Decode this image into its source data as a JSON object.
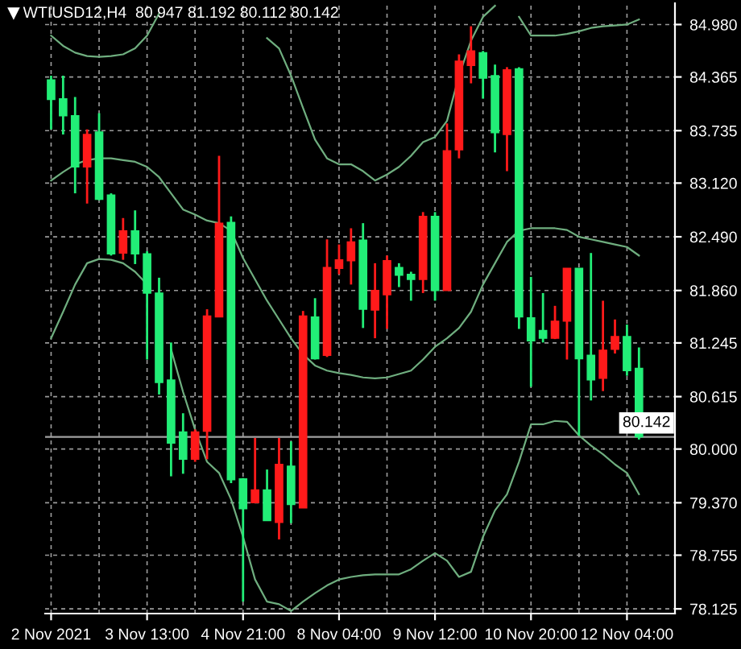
{
  "chart_data": {
    "type": "candlestick",
    "title": "WTIUSD12,H4  80.947 81.192 80.112 80.142",
    "categories": [
      "2 Nov 2021",
      null,
      null,
      null,
      null,
      null,
      null,
      null,
      "3 Nov 13:00",
      null,
      null,
      null,
      null,
      null,
      null,
      null,
      "4 Nov 21:00",
      null,
      null,
      null,
      null,
      null,
      null,
      null,
      "8 Nov 04:00",
      null,
      null,
      null,
      null,
      null,
      null,
      null,
      "9 Nov 12:00",
      null,
      null,
      null,
      null,
      null,
      null,
      null,
      "10 Nov 20:00",
      null,
      null,
      null,
      null,
      null,
      null,
      null,
      "12 Nov 04:00",
      null
    ],
    "ohlc": [
      [
        84.33,
        84.38,
        83.75,
        84.1
      ],
      [
        84.11,
        84.38,
        83.69,
        83.91
      ],
      [
        83.91,
        84.13,
        83.0,
        83.31
      ],
      [
        83.31,
        83.75,
        82.88,
        83.69
      ],
      [
        83.72,
        83.94,
        82.92,
        82.93
      ],
      [
        82.98,
        83.0,
        82.27,
        82.29
      ],
      [
        82.3,
        82.71,
        82.22,
        82.56
      ],
      [
        82.56,
        82.8,
        82.17,
        82.29
      ],
      [
        82.29,
        82.32,
        81.05,
        81.83
      ],
      [
        81.83,
        82.01,
        80.64,
        80.78
      ],
      [
        80.81,
        81.25,
        79.68,
        80.07
      ],
      [
        80.2,
        80.42,
        79.71,
        79.88
      ],
      [
        79.88,
        80.23,
        79.85,
        80.2
      ],
      [
        80.21,
        81.64,
        79.88,
        81.56
      ],
      [
        81.55,
        83.44,
        81.55,
        82.65
      ],
      [
        82.66,
        82.73,
        79.6,
        79.64
      ],
      [
        79.65,
        79.66,
        78.21,
        79.3
      ],
      [
        79.37,
        80.13,
        79.37,
        79.52
      ],
      [
        79.52,
        79.76,
        79.16,
        79.16
      ],
      [
        79.14,
        80.13,
        78.94,
        79.82
      ],
      [
        79.8,
        80.09,
        79.13,
        79.35
      ],
      [
        79.31,
        81.62,
        79.31,
        81.56
      ],
      [
        81.55,
        81.77,
        81.05,
        81.06
      ],
      [
        81.1,
        82.46,
        81.08,
        82.13
      ],
      [
        82.12,
        82.4,
        82.05,
        82.22
      ],
      [
        82.21,
        82.59,
        81.93,
        82.43
      ],
      [
        82.45,
        82.65,
        81.42,
        81.64
      ],
      [
        81.63,
        82.18,
        81.3,
        81.86
      ],
      [
        81.81,
        82.27,
        81.41,
        82.21
      ],
      [
        82.13,
        82.18,
        81.9,
        82.04
      ],
      [
        82.05,
        82.08,
        81.74,
        81.99
      ],
      [
        81.99,
        82.78,
        81.83,
        82.73
      ],
      [
        82.73,
        82.78,
        81.74,
        81.86
      ],
      [
        81.86,
        83.82,
        81.86,
        83.5
      ],
      [
        83.51,
        84.63,
        83.41,
        84.55
      ],
      [
        84.5,
        84.96,
        84.29,
        84.67
      ],
      [
        84.65,
        84.67,
        84.11,
        84.35
      ],
      [
        84.38,
        84.51,
        83.48,
        83.71
      ],
      [
        83.69,
        84.48,
        83.26,
        84.45
      ],
      [
        84.46,
        84.48,
        81.41,
        81.55
      ],
      [
        81.54,
        82.02,
        80.73,
        81.27
      ],
      [
        81.39,
        81.83,
        81.25,
        81.3
      ],
      [
        81.3,
        81.68,
        81.29,
        81.5
      ],
      [
        81.5,
        82.12,
        81.05,
        82.12
      ],
      [
        82.12,
        82.12,
        80.16,
        81.06
      ],
      [
        81.1,
        82.3,
        80.57,
        80.81
      ],
      [
        80.83,
        81.74,
        80.68,
        81.16
      ],
      [
        81.17,
        81.52,
        81.12,
        81.32
      ],
      [
        81.32,
        81.46,
        80.86,
        80.92
      ],
      [
        80.947,
        81.192,
        80.112,
        80.142
      ]
    ],
    "colors": [
      "#22ee77",
      "#22ee77",
      "#22ee77",
      "#ff1a1a",
      "#22ee77",
      "#22ee77",
      "#ff1a1a",
      "#22ee77",
      "#22ee77",
      "#22ee77",
      "#22ee77",
      "#22ee77",
      "#ff1a1a",
      "#ff1a1a",
      "#ff1a1a",
      "#22ee77",
      "#22ee77",
      "#ff1a1a",
      "#22ee77",
      "#ff1a1a",
      "#22ee77",
      "#ff1a1a",
      "#22ee77",
      "#ff1a1a",
      "#ff1a1a",
      "#ff1a1a",
      "#22ee77",
      "#ff1a1a",
      "#ff1a1a",
      "#22ee77",
      "#22ee77",
      "#ff1a1a",
      "#22ee77",
      "#ff1a1a",
      "#ff1a1a",
      "#ff1a1a",
      "#22ee77",
      "#22ee77",
      "#ff1a1a",
      "#22ee77",
      "#22ee77",
      "#22ee77",
      "#ff1a1a",
      "#ff1a1a",
      "#22ee77",
      "#22ee77",
      "#ff1a1a",
      "#ff1a1a",
      "#22ee77",
      "#22ee77"
    ],
    "series": [
      {
        "type": "line",
        "color": "#6fae7f",
        "values": [
          84.85,
          84.73,
          84.65,
          84.61,
          84.6,
          84.61,
          84.63,
          84.7,
          84.85,
          85.11,
          null,
          null,
          null,
          null,
          null,
          null,
          null,
          null,
          84.82,
          84.7,
          84.38,
          84.0,
          83.63,
          83.41,
          83.34,
          83.34,
          83.26,
          83.15,
          83.22,
          83.31,
          83.44,
          83.6,
          83.66,
          83.85,
          84.38,
          84.79,
          85.07,
          85.2,
          null,
          85.07,
          84.85,
          84.85,
          84.85,
          84.87,
          84.9,
          84.94,
          84.96,
          84.97,
          84.98,
          85.04
        ]
      },
      {
        "type": "line",
        "color": "#6fae7f",
        "values": [
          83.15,
          83.25,
          83.34,
          83.39,
          83.41,
          83.41,
          83.39,
          83.37,
          83.31,
          83.19,
          83.0,
          82.81,
          82.75,
          82.68,
          82.65,
          82.56,
          82.24,
          81.99,
          81.74,
          81.52,
          81.3,
          81.11,
          80.98,
          80.92,
          80.89,
          80.87,
          80.84,
          80.83,
          80.84,
          80.88,
          80.92,
          81.05,
          81.2,
          81.3,
          81.42,
          81.61,
          81.93,
          82.18,
          82.43,
          82.56,
          82.59,
          82.59,
          82.59,
          82.57,
          82.49,
          82.46,
          82.43,
          82.4,
          82.37,
          82.27
        ]
      },
      {
        "type": "line",
        "color": "#6fae7f",
        "values": [
          81.3,
          81.61,
          81.93,
          82.18,
          82.23,
          82.22,
          82.18,
          82.08,
          81.93,
          null,
          81.17,
          80.67,
          80.23,
          79.85,
          79.72,
          79.41,
          78.97,
          78.47,
          78.21,
          78.18,
          78.1,
          78.21,
          78.31,
          78.4,
          78.47,
          78.5,
          78.52,
          78.53,
          78.53,
          78.53,
          78.59,
          78.69,
          78.78,
          78.69,
          78.5,
          78.56,
          78.97,
          79.28,
          79.47,
          79.85,
          80.29,
          80.29,
          80.33,
          80.32,
          80.16,
          80.04,
          79.94,
          79.82,
          79.72,
          79.47
        ]
      }
    ],
    "ylim": [
      78.07,
      85.23
    ],
    "yticks": [
      {
        "value": 84.98,
        "label": "84.980"
      },
      {
        "value": 84.365,
        "label": "84.365"
      },
      {
        "value": 83.735,
        "label": "83.735"
      },
      {
        "value": 83.12,
        "label": "83.120"
      },
      {
        "value": 82.49,
        "label": "82.490"
      },
      {
        "value": 81.86,
        "label": "81.860"
      },
      {
        "value": 81.245,
        "label": "81.245"
      },
      {
        "value": 80.615,
        "label": "80.615"
      },
      {
        "value": 80.0,
        "label": "80.000"
      },
      {
        "value": 79.37,
        "label": "79.370"
      },
      {
        "value": 78.755,
        "label": "78.755"
      },
      {
        "value": 78.125,
        "label": "78.125"
      }
    ],
    "ref_lines": [
      {
        "axis": "y",
        "value": 80.142,
        "label": "80.142",
        "color": "#a0a0a0"
      }
    ],
    "grid": true
  }
}
